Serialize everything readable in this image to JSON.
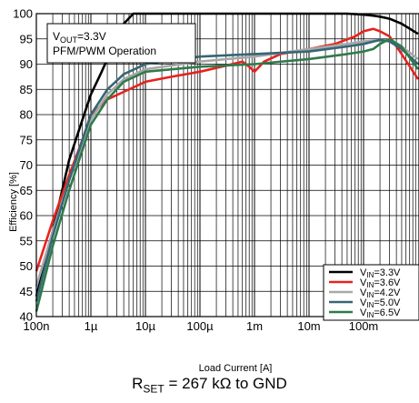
{
  "chart_data": {
    "type": "line",
    "xlabel": "Load Current [A]",
    "ylabel": "Efficiency [%]",
    "xscale": "log",
    "xlim": [
      1e-07,
      1
    ],
    "ylim": [
      40,
      100
    ],
    "grid": true,
    "legend_position": "bottom-right",
    "xtick_values": [
      1e-07,
      1e-06,
      1e-05,
      0.0001,
      0.001,
      0.01,
      0.1
    ],
    "xtick_labels": [
      "100n",
      "1µ",
      "10µ",
      "100µ",
      "1m",
      "10m",
      "100m"
    ],
    "ytick_values": [
      40,
      45,
      50,
      55,
      60,
      65,
      70,
      75,
      80,
      85,
      90,
      95,
      100
    ],
    "annotation": {
      "vout_prefix": "V",
      "vout_sub": "OUT",
      "vout_value": "=3.3V",
      "mode": "PFM/PWM Operation"
    },
    "caption": {
      "prefix": "R",
      "sub": "SET",
      "rest": " = 267 kΩ to GND"
    },
    "series": [
      {
        "name": "VIN=3.3V",
        "name_prefix": "V",
        "name_sub": "IN",
        "name_value": "=3.3V",
        "color": "#000000",
        "x": [
          1e-07,
          2e-07,
          4e-07,
          7e-07,
          1e-06,
          1.5e-06,
          2e-06,
          3e-06,
          4e-06,
          6e-06,
          1e-05,
          2e-05,
          0.0001,
          0.001,
          0.01,
          0.03,
          0.05,
          0.1,
          0.15,
          0.2,
          0.3,
          0.5,
          1
        ],
        "y": [
          44,
          57,
          71,
          79,
          84,
          88,
          91,
          95,
          98,
          100,
          100,
          100,
          100,
          100,
          100,
          100,
          100,
          99.8,
          99.6,
          99.4,
          99,
          98,
          96
        ]
      },
      {
        "name": "VIN=3.6V",
        "name_prefix": "V",
        "name_sub": "IN",
        "name_value": "=3.6V",
        "color": "#e8221e",
        "x": [
          1e-07,
          2e-07,
          4e-07,
          7e-07,
          1e-06,
          2e-06,
          4e-06,
          1e-05,
          3e-05,
          0.0001,
          0.0003,
          0.0006,
          0.0008,
          0.001,
          0.0015,
          0.003,
          0.01,
          0.03,
          0.07,
          0.1,
          0.15,
          0.2,
          0.3,
          0.5,
          1
        ],
        "y": [
          49,
          59,
          68,
          75,
          80,
          83,
          84.5,
          86.5,
          87.5,
          88.5,
          89.7,
          90.5,
          89.5,
          88.5,
          90.5,
          92,
          93,
          94,
          95.5,
          96.5,
          97,
          96.5,
          95.5,
          92,
          87
        ]
      },
      {
        "name": "VIN=4.2V",
        "name_prefix": "V",
        "name_sub": "IN",
        "name_value": "=4.2V",
        "color": "#a8a8a8",
        "x": [
          1e-07,
          2e-07,
          4e-07,
          7e-07,
          1e-06,
          2e-06,
          4e-06,
          1e-05,
          0.0001,
          0.001,
          0.01,
          0.05,
          0.1,
          0.2,
          0.3,
          0.5,
          1
        ],
        "y": [
          46,
          57,
          67,
          74,
          79,
          84,
          87,
          89,
          90.5,
          91.5,
          93,
          94,
          94.5,
          94.7,
          94.5,
          93.5,
          91
        ]
      },
      {
        "name": "VIN=5.0V",
        "name_prefix": "V",
        "name_sub": "IN",
        "name_value": "=5.0V",
        "color": "#356675",
        "x": [
          1e-07,
          2e-07,
          4e-07,
          7e-07,
          1e-06,
          2e-06,
          4e-06,
          1e-05,
          0.0001,
          0.001,
          0.01,
          0.05,
          0.1,
          0.2,
          0.3,
          0.5,
          1
        ],
        "y": [
          43,
          56,
          67,
          75,
          80,
          85,
          88,
          90,
          91.5,
          92,
          92.5,
          93.5,
          94,
          94.8,
          94.5,
          93,
          90
        ]
      },
      {
        "name": "VIN=6.5V",
        "name_prefix": "V",
        "name_sub": "IN",
        "name_value": "=6.5V",
        "color": "#2f7a4c",
        "x": [
          1e-07,
          2e-07,
          4e-07,
          7e-07,
          1e-06,
          2e-06,
          4e-06,
          1e-05,
          0.0001,
          0.001,
          0.01,
          0.05,
          0.1,
          0.15,
          0.2,
          0.3,
          0.5,
          1
        ],
        "y": [
          41,
          54,
          65,
          73,
          78,
          83,
          86.5,
          88.5,
          89.5,
          90,
          91,
          92,
          92.5,
          93,
          94,
          95,
          93.5,
          89
        ]
      }
    ]
  }
}
